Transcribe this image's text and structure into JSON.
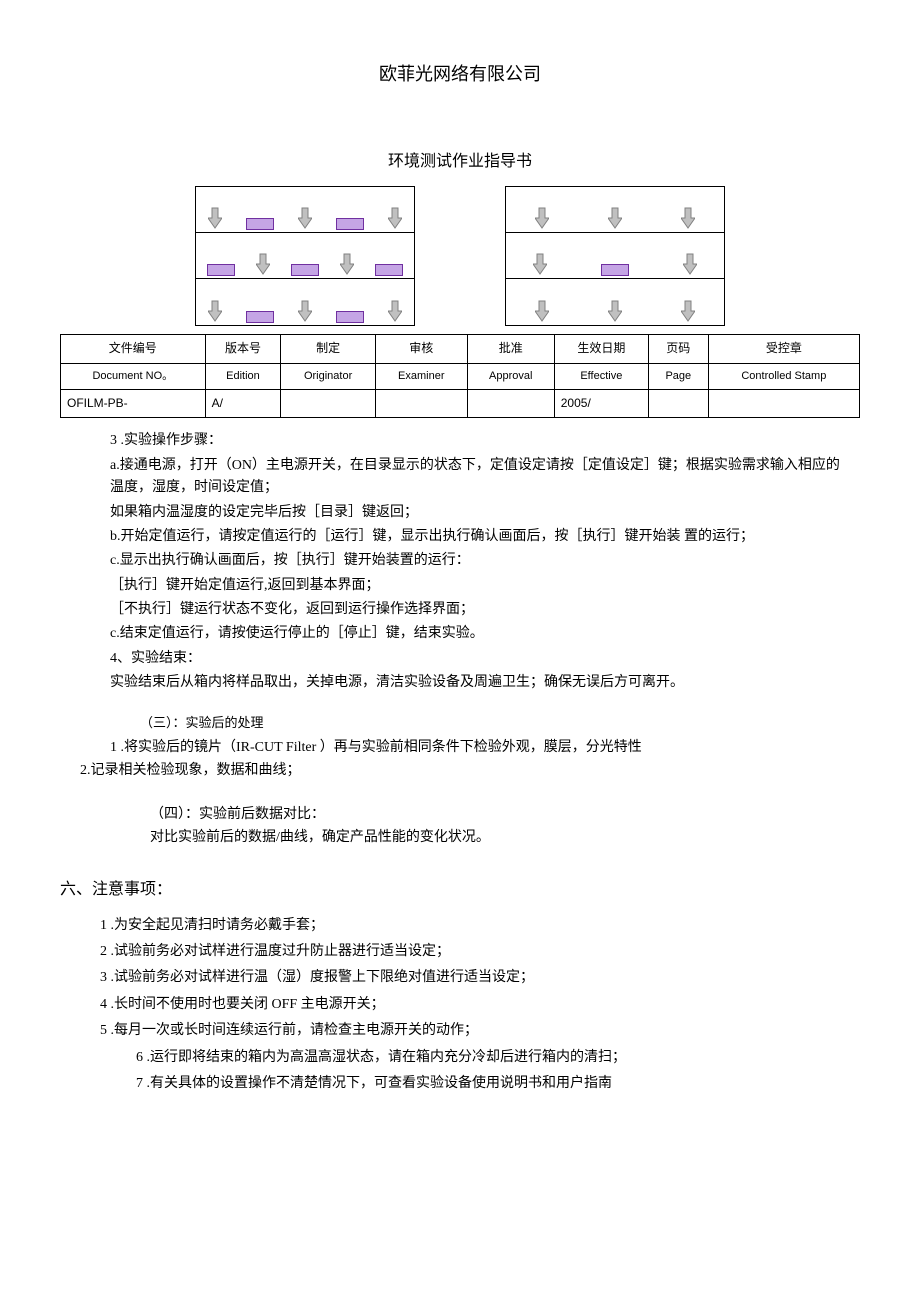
{
  "header": {
    "company": "欧菲光网络有限公司",
    "doc_title": "环境测试作业指导书"
  },
  "diagram": {
    "box_border": "#000000",
    "sample_fill": "#c5a5e5",
    "sample_border": "#7030a0",
    "arrow_stroke": "#808080",
    "arrow_fill": "#c0c0c0",
    "left_box_shelves": [
      {
        "items": [
          "arrow",
          "sample",
          "arrow",
          "sample",
          "arrow"
        ]
      },
      {
        "items": [
          "sample",
          "arrow",
          "sample",
          "arrow",
          "sample"
        ]
      },
      {
        "items": [
          "arrow",
          "sample",
          "arrow",
          "sample",
          "arrow"
        ]
      }
    ],
    "right_box_shelves": [
      {
        "items": [
          "arrow",
          "arrow",
          "arrow"
        ]
      },
      {
        "items": [
          "arrow",
          "sample",
          "arrow"
        ]
      },
      {
        "items": [
          "arrow",
          "arrow",
          "arrow"
        ]
      }
    ]
  },
  "meta_table": {
    "headers_cn": [
      "文件编号",
      "版本号",
      "制定",
      "审核",
      "批准",
      "生效日期",
      "页码",
      "受控章"
    ],
    "headers_en": [
      "Document NO。",
      "Edition",
      "Originator",
      "Examiner",
      "Approval",
      "Effective",
      "Page",
      "Controlled Stamp"
    ],
    "values": [
      "OFILM-PB-",
      "A/",
      "",
      "",
      "",
      "2005/",
      "",
      ""
    ]
  },
  "steps": {
    "title_3": "3 .实验操作步骤：",
    "a": "a.接通电源，打开（ON）主电源开关，在目录显示的状态下，定值设定请按［定值设定］键；根据实验需求输入相应的温度，湿度，时间设定值；",
    "a2": "如果箱内温湿度的设定完毕后按［目录］键返回；",
    "b": "b.开始定值运行，请按定值运行的［运行］键，显示出执行确认画面后，按［执行］键开始装 置的运行；",
    "c": "c.显示出执行确认画面后，按［执行］键开始装置的运行：",
    "c_exec": "［执行］键开始定值运行,返回到基本界面；",
    "c_noexec": "［不执行］键运行状态不变化，返回到运行操作选择界面；",
    "c_end": "c.结束定值运行，请按使运行停止的［停止］键，结束实验。",
    "title_4": "4、实验结束：",
    "end_text": "实验结束后从箱内将样品取出，关掉电源，清洁实验设备及周遍卫生；确保无误后方可离开。"
  },
  "post": {
    "sub3_title": "（三）：实验后的处理",
    "p1": "1 .将实验后的镜片（IR-CUT Filter ）再与实验前相同条件下检验外观，膜层，分光特性",
    "p2": "2.记录相关检验现象，数据和曲线；",
    "sub4_title": "（四）：实验前后数据对比：",
    "p4": "对比实验前后的数据/曲线，确定产品性能的变化状况。"
  },
  "notes": {
    "title": "六、注意事项：",
    "n1": "1 .为安全起见清扫时请务必戴手套；",
    "n2": "2 .试验前务必对试样进行温度过升防止器进行适当设定；",
    "n3": "3 .试验前务必对试样进行温（湿）度报警上下限绝对值进行适当设定；",
    "n4": "4 .长时间不使用时也要关闭 OFF 主电源开关；",
    "n5": "5 .每月一次或长时间连续运行前，请检查主电源开关的动作；",
    "n6": "6 .运行即将结束的箱内为高温高湿状态，请在箱内充分冷却后进行箱内的清扫；",
    "n7": "7 .有关具体的设置操作不清楚情况下，可查看实验设备使用说明书和用户指南"
  }
}
